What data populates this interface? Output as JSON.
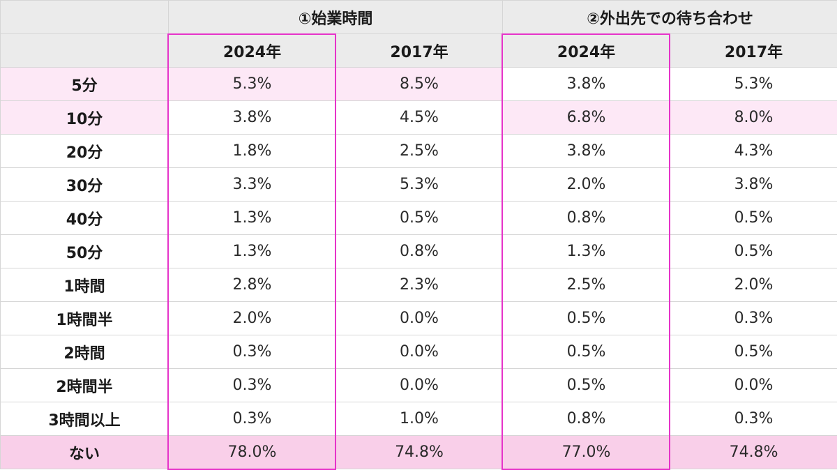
{
  "table": {
    "groups": [
      "①始業時間",
      "②外出先での待ち合わせ"
    ],
    "years": [
      "2024年",
      "2017年",
      "2024年",
      "2017年"
    ],
    "rows": [
      {
        "label": "5分",
        "values": [
          "5.3%",
          "8.5%",
          "3.8%",
          "5.3%"
        ],
        "highlight": [
          true,
          true,
          true,
          false,
          false
        ]
      },
      {
        "label": "10分",
        "values": [
          "3.8%",
          "4.5%",
          "6.8%",
          "8.0%"
        ],
        "highlight": [
          true,
          false,
          false,
          true,
          true
        ]
      },
      {
        "label": "20分",
        "values": [
          "1.8%",
          "2.5%",
          "3.8%",
          "4.3%"
        ],
        "highlight": [
          false,
          false,
          false,
          false,
          false
        ]
      },
      {
        "label": "30分",
        "values": [
          "3.3%",
          "5.3%",
          "2.0%",
          "3.8%"
        ],
        "highlight": [
          false,
          false,
          false,
          false,
          false
        ]
      },
      {
        "label": "40分",
        "values": [
          "1.3%",
          "0.5%",
          "0.8%",
          "0.5%"
        ],
        "highlight": [
          false,
          false,
          false,
          false,
          false
        ]
      },
      {
        "label": "50分",
        "values": [
          "1.3%",
          "0.8%",
          "1.3%",
          "0.5%"
        ],
        "highlight": [
          false,
          false,
          false,
          false,
          false
        ]
      },
      {
        "label": "1時間",
        "values": [
          "2.8%",
          "2.3%",
          "2.5%",
          "2.0%"
        ],
        "highlight": [
          false,
          false,
          false,
          false,
          false
        ]
      },
      {
        "label": "1時間半",
        "values": [
          "2.0%",
          "0.0%",
          "0.5%",
          "0.3%"
        ],
        "highlight": [
          false,
          false,
          false,
          false,
          false
        ]
      },
      {
        "label": "2時間",
        "values": [
          "0.3%",
          "0.0%",
          "0.5%",
          "0.5%"
        ],
        "highlight": [
          false,
          false,
          false,
          false,
          false
        ]
      },
      {
        "label": "2時間半",
        "values": [
          "0.3%",
          "0.0%",
          "0.5%",
          "0.0%"
        ],
        "highlight": [
          false,
          false,
          false,
          false,
          false
        ]
      },
      {
        "label": "3時間以上",
        "values": [
          "0.3%",
          "1.0%",
          "0.8%",
          "0.3%"
        ],
        "highlight": [
          false,
          false,
          false,
          false,
          false
        ]
      },
      {
        "label": "ない",
        "values": [
          "78.0%",
          "74.8%",
          "77.0%",
          "74.8%"
        ],
        "highlight": [
          true,
          true,
          true,
          true,
          true
        ]
      }
    ]
  },
  "colors": {
    "header_bg": "#ebebeb",
    "highlight_bg": "#fde8f6",
    "last_row_bg": "#f9cfe9",
    "frame_border": "#e633c9",
    "grid": "#d6d6d6"
  }
}
